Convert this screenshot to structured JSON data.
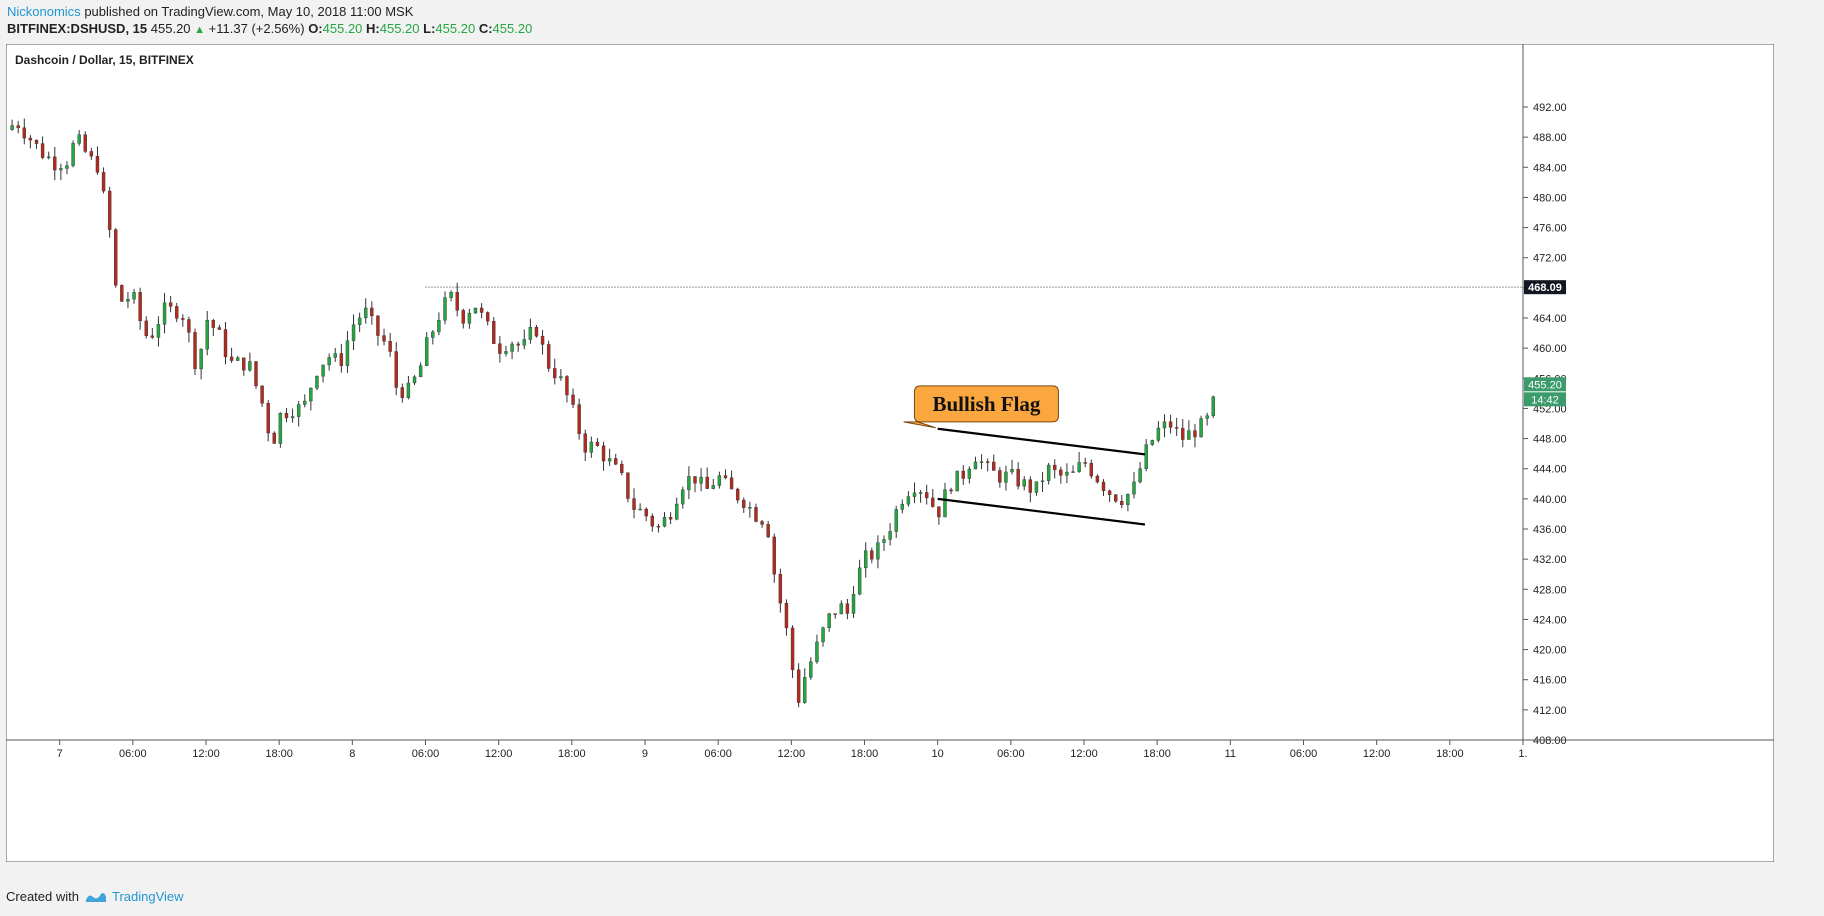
{
  "header": {
    "author": "Nickonomics",
    "published": "published on TradingView.com, May 10, 2018 11:00 MSK",
    "symbol": "BITFINEX:DSHUSD, 15",
    "last": "455.20",
    "change": "+11.37 (+2.56%)",
    "o_label": "O:",
    "o": "455.20",
    "h_label": "H:",
    "h": "455.20",
    "l_label": "L:",
    "l": "455.20",
    "c_label": "C:",
    "c": "455.20"
  },
  "footer": {
    "created_with": "Created with",
    "brand": "TradingView"
  },
  "colors": {
    "up": "#26a641",
    "down": "#b22b1f",
    "annotation_fill": "#f9a73e",
    "price_tag": "#3c9b6c",
    "level_tag": "#131722"
  },
  "chart_data": {
    "type": "candlestick",
    "title": "Dashcoin / Dollar, 15, BITFINEX",
    "ylim": [
      406,
      494
    ],
    "y_ticks": [
      "408.00",
      "412.00",
      "416.00",
      "420.00",
      "424.00",
      "428.00",
      "432.00",
      "436.00",
      "440.00",
      "444.00",
      "448.00",
      "452.00",
      "456.00",
      "460.00",
      "464.00",
      "468.00",
      "472.00",
      "476.00",
      "480.00",
      "484.00",
      "488.00",
      "492.00"
    ],
    "x_ticks": [
      {
        "label": "7",
        "t": 0
      },
      {
        "label": "06:00",
        "t": 6
      },
      {
        "label": "12:00",
        "t": 12
      },
      {
        "label": "18:00",
        "t": 18
      },
      {
        "label": "8",
        "t": 24
      },
      {
        "label": "06:00",
        "t": 30
      },
      {
        "label": "12:00",
        "t": 36
      },
      {
        "label": "18:00",
        "t": 42
      },
      {
        "label": "9",
        "t": 48
      },
      {
        "label": "06:00",
        "t": 54
      },
      {
        "label": "12:00",
        "t": 60
      },
      {
        "label": "18:00",
        "t": 66
      },
      {
        "label": "10",
        "t": 72
      },
      {
        "label": "06:00",
        "t": 78
      },
      {
        "label": "12:00",
        "t": 84
      },
      {
        "label": "18:00",
        "t": 90
      },
      {
        "label": "11",
        "t": 96
      },
      {
        "label": "06:00",
        "t": 102
      },
      {
        "label": "12:00",
        "t": 108
      },
      {
        "label": "18:00",
        "t": 114
      },
      {
        "label": "1.",
        "t": 120
      }
    ],
    "x_range_hours": [
      -4.4,
      120
    ],
    "series_close": [
      {
        "t": -4.4,
        "p": 489
      },
      {
        "t": -3.5,
        "p": 490
      },
      {
        "t": -2.5,
        "p": 488
      },
      {
        "t": -1.5,
        "p": 486
      },
      {
        "t": -0.3,
        "p": 484.5
      },
      {
        "t": 0.8,
        "p": 485
      },
      {
        "t": 1.3,
        "p": 488
      },
      {
        "t": 2.5,
        "p": 485
      },
      {
        "t": 3.3,
        "p": 484
      },
      {
        "t": 3.5,
        "p": 481
      },
      {
        "t": 3.9,
        "p": 477
      },
      {
        "t": 4.3,
        "p": 474
      },
      {
        "t": 4.5,
        "p": 470
      },
      {
        "t": 4.7,
        "p": 466
      },
      {
        "t": 6,
        "p": 467
      },
      {
        "t": 6.5,
        "p": 464
      },
      {
        "t": 7.3,
        "p": 461
      },
      {
        "t": 8.5,
        "p": 465
      },
      {
        "t": 10,
        "p": 465
      },
      {
        "t": 10.7,
        "p": 461
      },
      {
        "t": 11.3,
        "p": 457
      },
      {
        "t": 12,
        "p": 464
      },
      {
        "t": 13,
        "p": 462
      },
      {
        "t": 14,
        "p": 458
      },
      {
        "t": 15.5,
        "p": 458
      },
      {
        "t": 16.3,
        "p": 454
      },
      {
        "t": 17,
        "p": 451
      },
      {
        "t": 17.3,
        "p": 446
      },
      {
        "t": 18,
        "p": 451
      },
      {
        "t": 19,
        "p": 452
      },
      {
        "t": 20,
        "p": 452
      },
      {
        "t": 21,
        "p": 457
      },
      {
        "t": 22,
        "p": 459
      },
      {
        "t": 23,
        "p": 458
      },
      {
        "t": 24,
        "p": 463
      },
      {
        "t": 25,
        "p": 465
      },
      {
        "t": 26,
        "p": 462
      },
      {
        "t": 27,
        "p": 460
      },
      {
        "t": 27.5,
        "p": 455
      },
      {
        "t": 28.5,
        "p": 454
      },
      {
        "t": 29.5,
        "p": 457
      },
      {
        "t": 30,
        "p": 460
      },
      {
        "t": 31,
        "p": 464
      },
      {
        "t": 32,
        "p": 467
      },
      {
        "t": 33,
        "p": 464
      },
      {
        "t": 34,
        "p": 466
      },
      {
        "t": 35,
        "p": 463
      },
      {
        "t": 36,
        "p": 460
      },
      {
        "t": 37,
        "p": 461
      },
      {
        "t": 38,
        "p": 460
      },
      {
        "t": 39,
        "p": 463
      },
      {
        "t": 40,
        "p": 458
      },
      {
        "t": 41,
        "p": 456
      },
      {
        "t": 42,
        "p": 452
      },
      {
        "t": 43,
        "p": 447
      },
      {
        "t": 44,
        "p": 447
      },
      {
        "t": 45,
        "p": 445
      },
      {
        "t": 46,
        "p": 443
      },
      {
        "t": 47,
        "p": 439
      },
      {
        "t": 48,
        "p": 438
      },
      {
        "t": 49,
        "p": 436
      },
      {
        "t": 50,
        "p": 438
      },
      {
        "t": 51,
        "p": 442
      },
      {
        "t": 52,
        "p": 443
      },
      {
        "t": 53,
        "p": 441
      },
      {
        "t": 54,
        "p": 443
      },
      {
        "t": 55,
        "p": 441
      },
      {
        "t": 56,
        "p": 440
      },
      {
        "t": 57,
        "p": 438
      },
      {
        "t": 58,
        "p": 437
      },
      {
        "t": 58.5,
        "p": 431
      },
      {
        "t": 59,
        "p": 427
      },
      {
        "t": 59.8,
        "p": 421
      },
      {
        "t": 60.3,
        "p": 415
      },
      {
        "t": 60.7,
        "p": 413
      },
      {
        "t": 61,
        "p": 416
      },
      {
        "t": 62,
        "p": 420
      },
      {
        "t": 63,
        "p": 424
      },
      {
        "t": 64,
        "p": 426
      },
      {
        "t": 64.5,
        "p": 424
      },
      {
        "t": 65,
        "p": 428
      },
      {
        "t": 66,
        "p": 432
      },
      {
        "t": 67,
        "p": 433
      },
      {
        "t": 68,
        "p": 436
      },
      {
        "t": 69,
        "p": 440
      },
      {
        "t": 70,
        "p": 442
      },
      {
        "t": 71,
        "p": 441
      },
      {
        "t": 72,
        "p": 438
      },
      {
        "t": 73,
        "p": 442
      },
      {
        "t": 74,
        "p": 443
      },
      {
        "t": 75,
        "p": 446
      },
      {
        "t": 76,
        "p": 444
      },
      {
        "t": 77,
        "p": 443
      },
      {
        "t": 78,
        "p": 443
      },
      {
        "t": 79,
        "p": 442
      },
      {
        "t": 80,
        "p": 441
      },
      {
        "t": 81,
        "p": 444
      },
      {
        "t": 82,
        "p": 443
      },
      {
        "t": 83,
        "p": 443
      },
      {
        "t": 84,
        "p": 445
      },
      {
        "t": 85,
        "p": 443
      },
      {
        "t": 86,
        "p": 441
      },
      {
        "t": 87,
        "p": 440
      },
      {
        "t": 88,
        "p": 441
      },
      {
        "t": 89,
        "p": 446
      },
      {
        "t": 90,
        "p": 449
      },
      {
        "t": 91,
        "p": 450
      },
      {
        "t": 92,
        "p": 448
      },
      {
        "t": 93,
        "p": 449
      },
      {
        "t": 94,
        "p": 450
      },
      {
        "t": 94.5,
        "p": 452
      },
      {
        "t": 95,
        "p": 455.2
      }
    ],
    "horizontal_level": {
      "price": 468.09,
      "label": "468.09",
      "from_t": 30
    },
    "last_price": {
      "price": 455.2,
      "label": "455.20",
      "countdown": "14:42"
    },
    "annotation": {
      "text": "Bullish Flag",
      "t": 76,
      "price": 452.6
    },
    "channel": [
      {
        "t1": 72,
        "p1": 449.3,
        "t2": 89,
        "p2": 445.9
      },
      {
        "t1": 72,
        "p1": 440.0,
        "t2": 89,
        "p2": 436.6
      }
    ]
  }
}
